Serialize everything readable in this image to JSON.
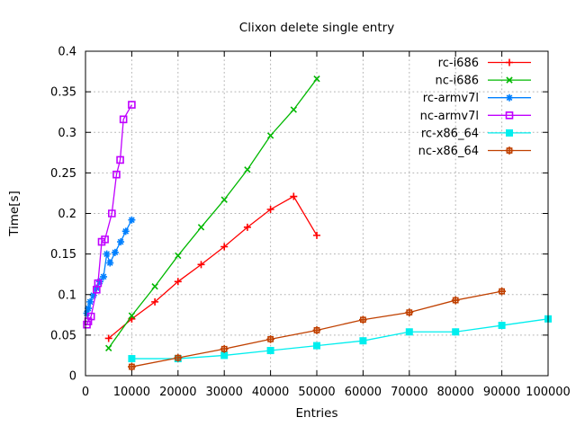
{
  "chart_data": {
    "type": "line",
    "title": "Clixon delete single entry",
    "xlabel": "Entries",
    "ylabel": "Time[s]",
    "xlim": [
      0,
      100000
    ],
    "ylim": [
      0,
      0.4
    ],
    "xticks": [
      0,
      10000,
      20000,
      30000,
      40000,
      50000,
      60000,
      70000,
      80000,
      90000,
      100000
    ],
    "xtick_labels": [
      "0",
      "10000",
      "20000",
      "30000",
      "40000",
      "50000",
      "60000",
      "70000",
      "80000",
      "90000",
      "100000"
    ],
    "yticks": [
      0,
      0.05,
      0.1,
      0.15,
      0.2,
      0.25,
      0.3,
      0.35,
      0.4
    ],
    "ytick_labels": [
      "0",
      "0.05",
      "0.1",
      "0.15",
      "0.2",
      "0.25",
      "0.3",
      "0.35",
      "0.4"
    ],
    "grid": true,
    "grid_color": "#b4b4b4",
    "frame_color": "#000000",
    "background_color": "#ffffff",
    "text_color": "#000000",
    "legend_position": "top-right-inside",
    "series": [
      {
        "name": "rc-i686",
        "color": "#ff0000",
        "marker": "plus",
        "points": [
          [
            5000,
            0.046
          ],
          [
            10000,
            0.07
          ],
          [
            15000,
            0.091
          ],
          [
            20000,
            0.116
          ],
          [
            25000,
            0.137
          ],
          [
            30000,
            0.159
          ],
          [
            35000,
            0.183
          ],
          [
            40000,
            0.205
          ],
          [
            45000,
            0.221
          ],
          [
            50000,
            0.173
          ]
        ]
      },
      {
        "name": "nc-i686",
        "color": "#00b800",
        "marker": "cross",
        "points": [
          [
            5000,
            0.034
          ],
          [
            10000,
            0.074
          ],
          [
            15000,
            0.11
          ],
          [
            20000,
            0.148
          ],
          [
            25000,
            0.183
          ],
          [
            30000,
            0.217
          ],
          [
            35000,
            0.254
          ],
          [
            40000,
            0.296
          ],
          [
            45000,
            0.328
          ],
          [
            50000,
            0.366
          ]
        ]
      },
      {
        "name": "rc-armv7l",
        "color": "#0080ff",
        "marker": "asterisk",
        "points": [
          [
            300,
            0.077
          ],
          [
            600,
            0.083
          ],
          [
            1000,
            0.091
          ],
          [
            1700,
            0.099
          ],
          [
            2400,
            0.108
          ],
          [
            3100,
            0.116
          ],
          [
            3900,
            0.122
          ],
          [
            4600,
            0.15
          ],
          [
            5300,
            0.139
          ],
          [
            6400,
            0.152
          ],
          [
            7600,
            0.165
          ],
          [
            8700,
            0.178
          ],
          [
            10000,
            0.192
          ]
        ]
      },
      {
        "name": "nc-armv7l",
        "color": "#c000ff",
        "marker": "square-open",
        "points": [
          [
            300,
            0.063
          ],
          [
            600,
            0.067
          ],
          [
            1200,
            0.073
          ],
          [
            2400,
            0.106
          ],
          [
            2700,
            0.114
          ],
          [
            3500,
            0.165
          ],
          [
            4200,
            0.168
          ],
          [
            5700,
            0.2
          ],
          [
            6700,
            0.248
          ],
          [
            7500,
            0.266
          ],
          [
            8200,
            0.316
          ],
          [
            10000,
            0.334
          ]
        ]
      },
      {
        "name": "rc-x86_64",
        "color": "#00eeee",
        "marker": "square-filled",
        "points": [
          [
            10000,
            0.021
          ],
          [
            20000,
            0.021
          ],
          [
            30000,
            0.025
          ],
          [
            40000,
            0.031
          ],
          [
            50000,
            0.037
          ],
          [
            60000,
            0.043
          ],
          [
            70000,
            0.054
          ],
          [
            80000,
            0.054
          ],
          [
            90000,
            0.062
          ],
          [
            100000,
            0.07
          ]
        ]
      },
      {
        "name": "nc-x86_64",
        "color": "#c04000",
        "marker": "square-plus",
        "points": [
          [
            10000,
            0.011
          ],
          [
            20000,
            0.022
          ],
          [
            30000,
            0.033
          ],
          [
            40000,
            0.045
          ],
          [
            50000,
            0.056
          ],
          [
            60000,
            0.069
          ],
          [
            70000,
            0.078
          ],
          [
            80000,
            0.093
          ],
          [
            90000,
            0.104
          ]
        ]
      }
    ]
  }
}
